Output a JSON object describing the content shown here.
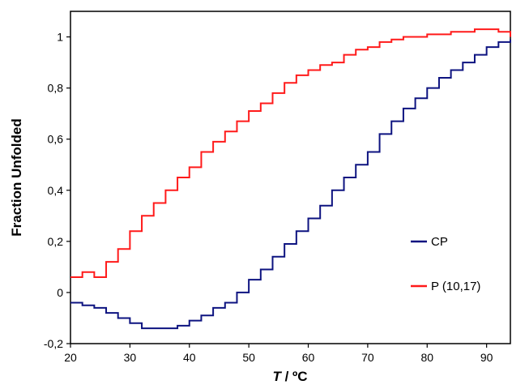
{
  "chart_data": {
    "type": "line",
    "xlabel_var": "T",
    "xlabel_unit": " / ºC",
    "ylabel": "Fraction Unfolded",
    "xlim": [
      20,
      94
    ],
    "ylim": [
      -0.2,
      1.1
    ],
    "x_ticks": [
      "20",
      "30",
      "40",
      "50",
      "60",
      "70",
      "80",
      "90"
    ],
    "y_ticks": [
      "-0,2",
      "0",
      "0,2",
      "0,4",
      "0,6",
      "0,8",
      "1"
    ],
    "grid": false,
    "legend_position": "right",
    "series": [
      {
        "name": "CP",
        "color": "#0d1380",
        "x": [
          20,
          22,
          24,
          26,
          28,
          30,
          32,
          34,
          36,
          38,
          40,
          42,
          44,
          46,
          48,
          50,
          52,
          54,
          56,
          58,
          60,
          62,
          64,
          66,
          68,
          70,
          72,
          74,
          76,
          78,
          80,
          82,
          84,
          86,
          88,
          90,
          92,
          94
        ],
        "values": [
          -0.04,
          -0.05,
          -0.06,
          -0.08,
          -0.1,
          -0.12,
          -0.14,
          -0.14,
          -0.14,
          -0.13,
          -0.11,
          -0.09,
          -0.06,
          -0.04,
          0.0,
          0.05,
          0.09,
          0.14,
          0.19,
          0.24,
          0.29,
          0.34,
          0.4,
          0.45,
          0.5,
          0.55,
          0.62,
          0.67,
          0.72,
          0.76,
          0.8,
          0.84,
          0.87,
          0.9,
          0.93,
          0.96,
          0.98,
          0.99
        ]
      },
      {
        "name": "P (10,17)",
        "color": "#ff1a1a",
        "x": [
          20,
          22,
          24,
          26,
          28,
          30,
          32,
          34,
          36,
          38,
          40,
          42,
          44,
          46,
          48,
          50,
          52,
          54,
          56,
          58,
          60,
          62,
          64,
          66,
          68,
          70,
          72,
          74,
          76,
          78,
          80,
          82,
          84,
          86,
          88,
          90,
          92,
          94
        ],
        "values": [
          0.06,
          0.08,
          0.06,
          0.12,
          0.17,
          0.24,
          0.3,
          0.35,
          0.4,
          0.45,
          0.49,
          0.55,
          0.59,
          0.63,
          0.67,
          0.71,
          0.74,
          0.78,
          0.82,
          0.85,
          0.87,
          0.89,
          0.9,
          0.93,
          0.95,
          0.96,
          0.98,
          0.99,
          1.0,
          1.0,
          1.01,
          1.01,
          1.02,
          1.02,
          1.03,
          1.03,
          1.02,
          1.0
        ]
      }
    ]
  }
}
